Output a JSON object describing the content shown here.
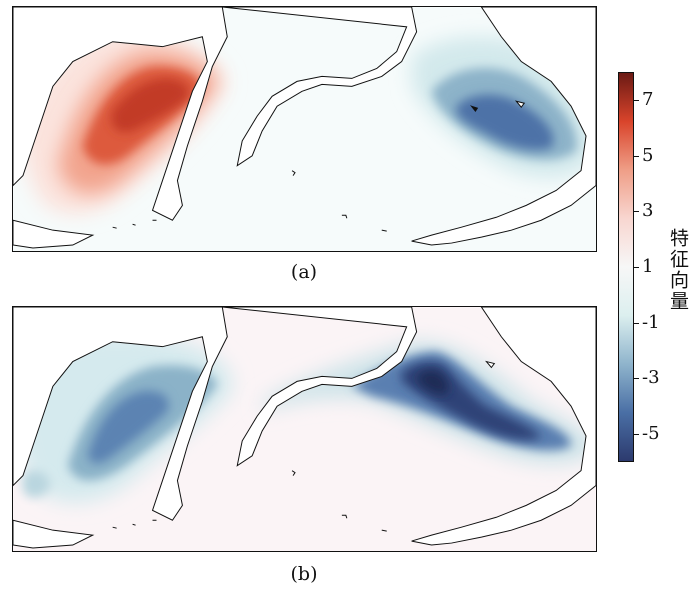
{
  "chart_data": [
    {
      "type": "heatmap",
      "panel_label": "(a)",
      "colorbar_label": "特征向量",
      "colorbar_ticks": [
        7,
        5,
        3,
        1,
        -1,
        -3,
        -5
      ],
      "colorbar_range": [
        -6,
        8
      ],
      "colormap": [
        "#2c3a6e",
        "#4a6fa5",
        "#8fb4cc",
        "#dcefef",
        "#f7f7f7",
        "#f8d6d0",
        "#ef9e87",
        "#d9442b",
        "#6b1a14"
      ],
      "features": [
        {
          "name": "western-max",
          "value": 5.5,
          "sign": "positive"
        },
        {
          "name": "eastern-min",
          "value": -3.5,
          "sign": "negative"
        }
      ]
    },
    {
      "type": "heatmap",
      "panel_label": "(b)",
      "colorbar_label": "特征向量",
      "colorbar_ticks": [
        7,
        5,
        3,
        1,
        -1,
        -3,
        -5
      ],
      "colorbar_range": [
        -6,
        8
      ],
      "features": [
        {
          "name": "western-min",
          "value": -2.5,
          "sign": "negative"
        },
        {
          "name": "eastern-min",
          "value": -5.5,
          "sign": "negative"
        }
      ]
    }
  ]
}
